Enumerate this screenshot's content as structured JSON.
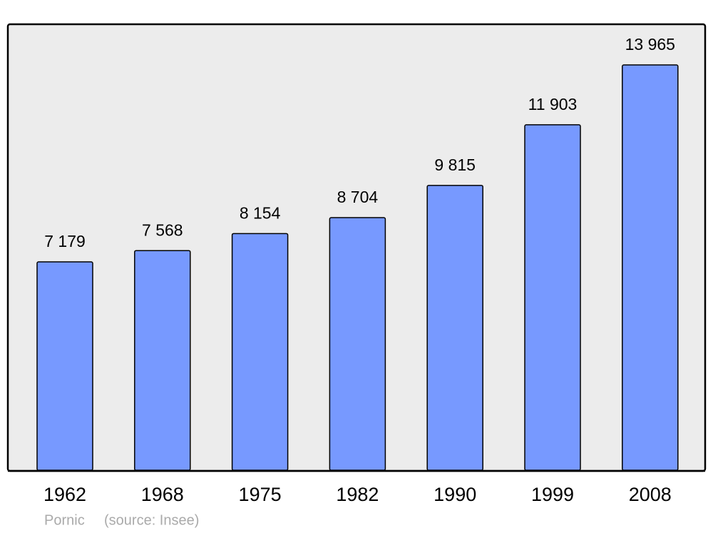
{
  "chart_data": {
    "type": "bar",
    "categories": [
      "1962",
      "1968",
      "1975",
      "1982",
      "1990",
      "1999",
      "2008"
    ],
    "values": [
      7179,
      7568,
      8154,
      8704,
      9815,
      11903,
      13965
    ],
    "value_labels": [
      "7 179",
      "7 568",
      "8 154",
      "8 704",
      "9 815",
      "11 903",
      "13 965"
    ],
    "color": "#7799ff",
    "ylim": [
      0,
      15343
    ],
    "footer": {
      "place": "Pornic",
      "source": "(source: Insee)"
    }
  }
}
